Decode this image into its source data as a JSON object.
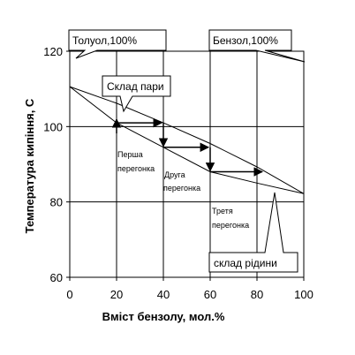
{
  "chart_data": {
    "type": "line",
    "xlabel": "Вміст бензолу, мол.%",
    "ylabel": "Температура кипіння, С",
    "xlim": [
      0,
      100
    ],
    "ylim": [
      60,
      120
    ],
    "x_ticks": [
      0,
      20,
      40,
      60,
      80,
      100
    ],
    "y_ticks": [
      60,
      80,
      100,
      120
    ],
    "grid": "vertical and horizontal gridlines at tick positions",
    "series": [
      {
        "name": "Склад пари",
        "x": [
          0,
          20,
          40,
          60,
          80,
          100
        ],
        "y": [
          110.6,
          106.2,
          101.0,
          95.5,
          89.3,
          82.2
        ]
      },
      {
        "name": "Склад рідини",
        "x": [
          0,
          20,
          40,
          60,
          80,
          100
        ],
        "y": [
          110.6,
          101.0,
          94.5,
          88.0,
          85.0,
          82.2
        ]
      }
    ],
    "steps": [
      {
        "label": "Перша перегонка",
        "x": [
          20,
          40
        ],
        "y": 101.0,
        "drop_to": 94.5
      },
      {
        "label": "Друга перегонка",
        "x": [
          40,
          60
        ],
        "y": 94.5,
        "drop_to": 88.0
      },
      {
        "label": "Третя перегонка",
        "x": [
          60,
          83
        ],
        "y": 88.0
      }
    ],
    "annotations": {
      "toluene": "Толуол,100%",
      "benzene": "Бензол,100%",
      "vapor": "Склад пари",
      "liquid": "склад рідини",
      "first": [
        "Перша",
        "перегонка"
      ],
      "second": [
        "Друга",
        "перегонка"
      ],
      "third": [
        "Третя",
        "перегонка"
      ]
    }
  }
}
